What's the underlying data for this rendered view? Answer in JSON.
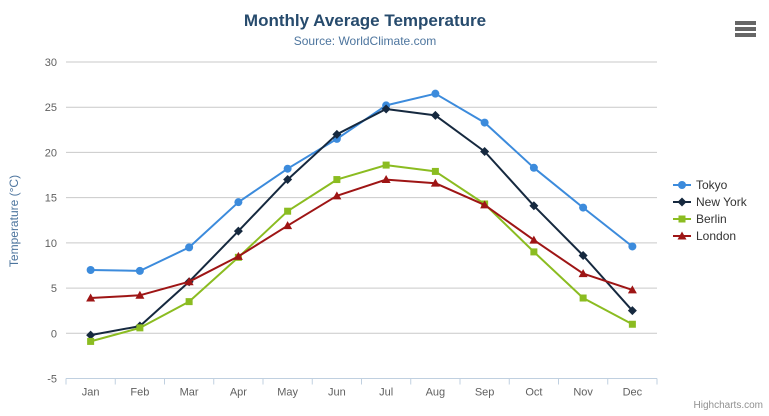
{
  "header": {
    "title": "Monthly Average Temperature",
    "subtitle": "Source: WorldClimate.com",
    "menu_icon": "hamburger-icon"
  },
  "credits": {
    "label": "Highcharts.com"
  },
  "axes": {
    "y_title": "Temperature (°C)",
    "y_ticks": [
      -5,
      0,
      5,
      10,
      15,
      20,
      25,
      30
    ],
    "x_categories": [
      "Jan",
      "Feb",
      "Mar",
      "Apr",
      "May",
      "Jun",
      "Jul",
      "Aug",
      "Sep",
      "Oct",
      "Nov",
      "Dec"
    ]
  },
  "colors": {
    "title": "#274b6d",
    "subtitle": "#4d759e",
    "axis_label": "#606060",
    "axis_title": "#4d759e",
    "gridline": "#c9c9c9",
    "axis_line": "#c0d0e0",
    "legend_text": "#333333",
    "credits_text": "#909090",
    "menu_icon": "#666666"
  },
  "legend": {
    "items": [
      "Tokyo",
      "New York",
      "Berlin",
      "London"
    ]
  },
  "chart_data": {
    "type": "line",
    "title": "Monthly Average Temperature",
    "subtitle": "Source: WorldClimate.com",
    "categories": [
      "Jan",
      "Feb",
      "Mar",
      "Apr",
      "May",
      "Jun",
      "Jul",
      "Aug",
      "Sep",
      "Oct",
      "Nov",
      "Dec"
    ],
    "xlabel": "",
    "ylabel": "Temperature (°C)",
    "ylim": [
      -5,
      30
    ],
    "y_tick_interval": 5,
    "grid": true,
    "legend_position": "right",
    "series": [
      {
        "name": "Tokyo",
        "color": "#3c8bdc",
        "marker": "circle",
        "values": [
          7.0,
          6.9,
          9.5,
          14.5,
          18.2,
          21.5,
          25.2,
          26.5,
          23.3,
          18.3,
          13.9,
          9.6
        ]
      },
      {
        "name": "New York",
        "color": "#16293f",
        "marker": "diamond",
        "values": [
          -0.2,
          0.8,
          5.7,
          11.3,
          17.0,
          22.0,
          24.8,
          24.1,
          20.1,
          14.1,
          8.6,
          2.5
        ]
      },
      {
        "name": "Berlin",
        "color": "#8bbc21",
        "marker": "square",
        "values": [
          -0.9,
          0.6,
          3.5,
          8.4,
          13.5,
          17.0,
          18.6,
          17.9,
          14.3,
          9.0,
          3.9,
          1.0
        ]
      },
      {
        "name": "London",
        "color": "#9e1515",
        "marker": "triangle",
        "values": [
          3.9,
          4.2,
          5.7,
          8.5,
          11.9,
          15.2,
          17.0,
          16.6,
          14.2,
          10.3,
          6.6,
          4.8
        ]
      }
    ]
  }
}
